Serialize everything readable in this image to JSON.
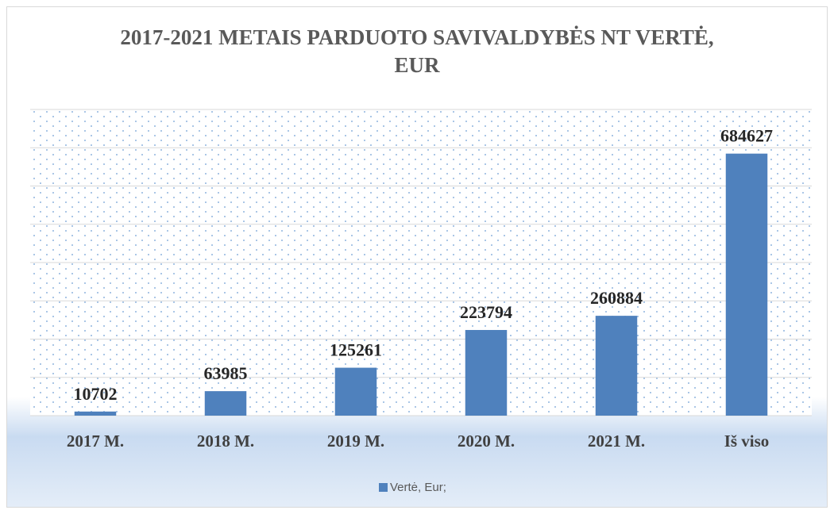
{
  "chart_data": {
    "type": "bar",
    "title": "2017-2021 METAIS PARDUOTO SAVIVALDYBĖS NT VERTĖ, EUR",
    "categories": [
      "2017 M.",
      "2018 M.",
      "2019 M.",
      "2020 M.",
      "2021 M.",
      "Iš viso"
    ],
    "series": [
      {
        "name": "Vertė, Eur;",
        "color": "#4f81bd",
        "values": [
          10702,
          63985,
          125261,
          223794,
          260884,
          684627
        ]
      }
    ],
    "ylim": [
      0,
      800000
    ],
    "yticks": [
      0,
      100000,
      200000,
      300000,
      400000,
      500000,
      600000,
      700000,
      800000
    ],
    "grid": true,
    "legend": "bottom"
  }
}
